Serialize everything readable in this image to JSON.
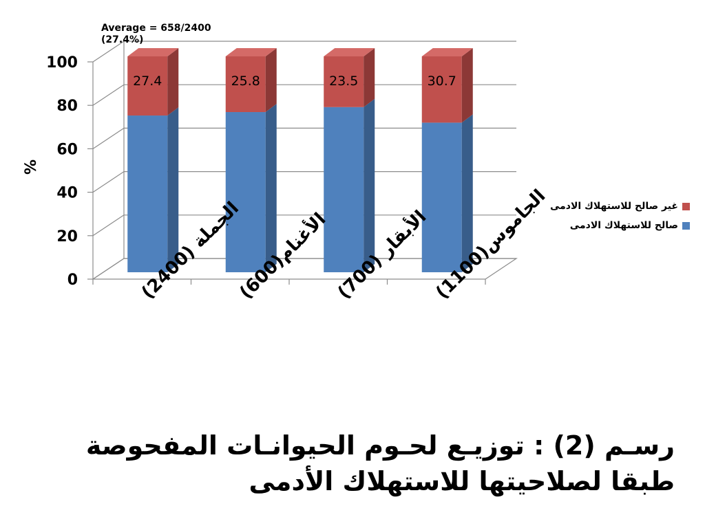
{
  "annotation": {
    "line1": "Average = 658/2400",
    "line2": "(27.4%)"
  },
  "legend": {
    "items": [
      {
        "label": "غير صالح للاستهلاك الادمى",
        "color": "#C0504D"
      },
      {
        "label": "صالح للاستهلاك الادمى",
        "color": "#4F81BD"
      }
    ]
  },
  "caption": {
    "line1": "رسـم (2) : توزيـع لحـوم الحيوانـات المفحوصة",
    "line2": "طبقا              لصلاحيتها للاستهلاك الأدمى"
  },
  "chart_data": {
    "type": "bar",
    "stacked": true,
    "three_d": true,
    "ylabel": "%",
    "ylim": [
      0,
      100
    ],
    "yticks": [
      0,
      20,
      40,
      60,
      80,
      100
    ],
    "grid": true,
    "legend_position": "right",
    "categories": [
      "الجملة (2400)",
      "الأغنام(600)",
      "الأبقار (700)",
      "الجاموس(1100)"
    ],
    "series": [
      {
        "name": "صالح للاستهلاك الادمى",
        "color": "#4F81BD",
        "values": [
          72.6,
          74.2,
          76.5,
          69.3
        ]
      },
      {
        "name": "غير صالح للاستهلاك الادمى",
        "color": "#C0504D",
        "values": [
          27.4,
          25.8,
          23.5,
          30.7
        ]
      }
    ],
    "data_labels": [
      "27.4",
      "25.8",
      "23.5",
      "30.7"
    ]
  }
}
